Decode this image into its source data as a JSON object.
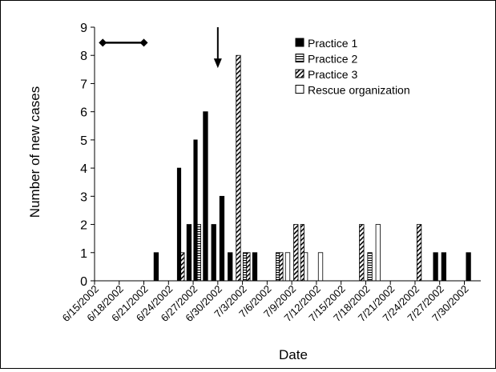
{
  "chart_data": {
    "type": "bar",
    "xlabel": "Date",
    "ylabel": "Number of new cases",
    "ylim": [
      0,
      9
    ],
    "yticks": [
      0,
      1,
      2,
      3,
      4,
      5,
      6,
      7,
      8,
      9
    ],
    "xlim": [
      "6/15/2002",
      "8/1/2002"
    ],
    "x_tick_labels": [
      "6/15/2002",
      "6/18/2002",
      "6/21/2002",
      "6/24/2002",
      "6/27/2002",
      "6/30/2002",
      "7/3/2002",
      "7/6/2002",
      "7/9/2002",
      "7/12/2002",
      "7/15/2002",
      "7/18/2002",
      "7/21/2002",
      "7/24/2002",
      "7/27/2002",
      "7/30/2002"
    ],
    "grid": false,
    "legend_position": "top-right",
    "series": [
      {
        "name": "Practice 1",
        "fill": "solid",
        "color": "#000000",
        "points": [
          [
            "6/22/2002",
            1
          ],
          [
            "6/25/2002",
            4
          ],
          [
            "6/26/2002",
            2
          ],
          [
            "6/27/2002",
            5
          ],
          [
            "6/28/2002",
            6
          ],
          [
            "6/29/2002",
            2
          ],
          [
            "6/30/2002",
            3
          ],
          [
            "7/1/2002",
            1
          ],
          [
            "7/4/2002",
            1
          ],
          [
            "7/26/2002",
            1
          ],
          [
            "7/27/2002",
            1
          ],
          [
            "7/30/2002",
            1
          ]
        ]
      },
      {
        "name": "Practice 2",
        "fill": "horizontal-stripes",
        "color": "#000000",
        "points": [
          [
            "6/27/2002",
            2
          ],
          [
            "7/3/2002",
            1
          ],
          [
            "7/7/2002",
            1
          ],
          [
            "7/18/2002",
            1
          ]
        ]
      },
      {
        "name": "Practice 3",
        "fill": "diagonal-stripes",
        "color": "#000000",
        "points": [
          [
            "6/25/2002",
            1
          ],
          [
            "7/2/2002",
            8
          ],
          [
            "7/3/2002",
            1
          ],
          [
            "7/7/2002",
            1
          ],
          [
            "7/9/2002",
            2
          ],
          [
            "7/10/2002",
            2
          ],
          [
            "7/17/2002",
            2
          ],
          [
            "7/24/2002",
            2
          ]
        ]
      },
      {
        "name": "Rescue organization",
        "fill": "empty",
        "color": "#ffffff",
        "points": [
          [
            "7/8/2002",
            1
          ],
          [
            "7/10/2002",
            1
          ],
          [
            "7/12/2002",
            1
          ],
          [
            "7/19/2002",
            2
          ]
        ]
      }
    ],
    "annotations": [
      {
        "kind": "interval-with-diamond-ends",
        "from": "6/16/2002",
        "to": "6/21/2002",
        "y": 8.45
      },
      {
        "kind": "down-arrow",
        "at": "6/30/2002",
        "from_y": 9.0,
        "to_y": 7.55
      }
    ]
  }
}
